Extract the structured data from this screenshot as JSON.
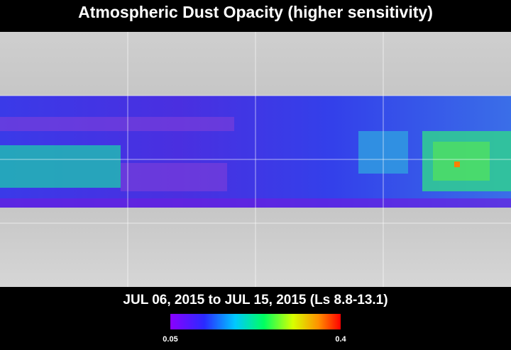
{
  "title": "Atmospheric Dust Opacity (higher sensitivity)",
  "date_range": "JUL 06, 2015 to JUL 15, 2015 (Ls 8.8-13.1)",
  "colorbar": {
    "min": 0.05,
    "max": 0.4
  }
}
